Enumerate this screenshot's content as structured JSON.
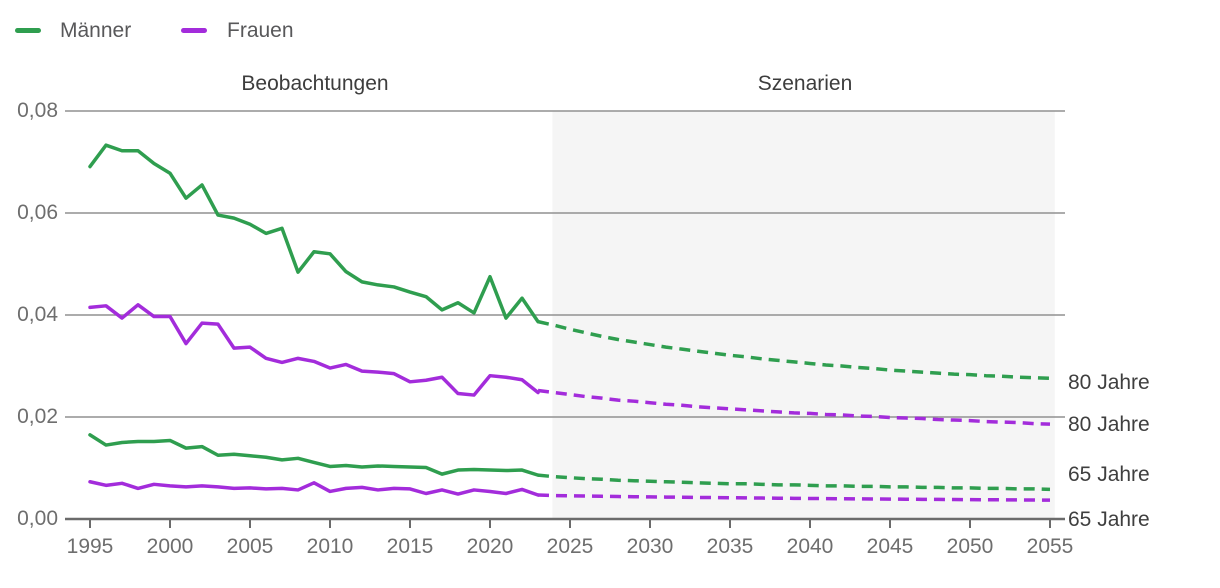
{
  "legend": {
    "items": [
      {
        "label": "Männer",
        "color": "#2f9e4f"
      },
      {
        "label": "Frauen",
        "color": "#a32cdb"
      }
    ]
  },
  "sections": {
    "observations": "Beobachtungen",
    "scenarios": "Szenarien"
  },
  "axes": {
    "y": {
      "tick_labels": [
        "0,08",
        "0,06",
        "0,04",
        "0,02",
        "0,00"
      ]
    },
    "x": {
      "tick_labels": [
        "1995",
        "2000",
        "2005",
        "2010",
        "2015",
        "2020",
        "2025",
        "2030",
        "2035",
        "2040",
        "2045",
        "2050",
        "2055"
      ]
    }
  },
  "line_end_labels": [
    "80 Jahre",
    "80 Jahre",
    "65 Jahre",
    "65 Jahre"
  ],
  "chart_data": {
    "type": "line",
    "title": "",
    "xlabel": "",
    "ylabel": "",
    "xlim": [
      1995,
      2055
    ],
    "ylim": [
      0,
      0.08
    ],
    "y_gridlines": [
      0.08,
      0.06,
      0.04,
      0.02
    ],
    "scenario_region": [
      2023.9,
      2055.3
    ],
    "scenario_bg": "#f5f5f5",
    "gridline_color": "#919191",
    "axis_color": "#6b6b6b",
    "observed_years": [
      1995,
      1996,
      1997,
      1998,
      1999,
      2000,
      2001,
      2002,
      2003,
      2004,
      2005,
      2006,
      2007,
      2008,
      2009,
      2010,
      2011,
      2012,
      2013,
      2014,
      2015,
      2016,
      2017,
      2018,
      2019,
      2020,
      2021,
      2022,
      2023
    ],
    "scenario_years": [
      2023,
      2024,
      2025,
      2026,
      2027,
      2028,
      2029,
      2030,
      2031,
      2032,
      2033,
      2034,
      2035,
      2036,
      2037,
      2038,
      2039,
      2040,
      2041,
      2042,
      2043,
      2044,
      2045,
      2046,
      2047,
      2048,
      2049,
      2050,
      2051,
      2052,
      2053,
      2054,
      2055
    ],
    "series": [
      {
        "name": "Männer 80 Jahre (Beobachtungen)",
        "color": "#2f9e4f",
        "dash": false,
        "period": "observed",
        "values": [
          0.0691,
          0.0733,
          0.0722,
          0.0722,
          0.0697,
          0.0678,
          0.0629,
          0.0655,
          0.0596,
          0.059,
          0.0578,
          0.056,
          0.057,
          0.0484,
          0.0524,
          0.052,
          0.0485,
          0.0465,
          0.0459,
          0.0455,
          0.0445,
          0.0436,
          0.041,
          0.0424,
          0.0404,
          0.0475,
          0.0394,
          0.0433,
          0.0387
        ]
      },
      {
        "name": "Männer 80 Jahre (Szenarien)",
        "color": "#2f9e4f",
        "dash": true,
        "period": "scenario",
        "values": [
          0.0387,
          0.038,
          0.0372,
          0.0365,
          0.0358,
          0.0352,
          0.0347,
          0.0342,
          0.0337,
          0.0333,
          0.0329,
          0.0325,
          0.0321,
          0.0318,
          0.0314,
          0.0311,
          0.0308,
          0.0305,
          0.0302,
          0.03,
          0.0297,
          0.0295,
          0.0292,
          0.029,
          0.0288,
          0.0286,
          0.0284,
          0.0283,
          0.0281,
          0.028,
          0.0278,
          0.0277,
          0.0276
        ]
      },
      {
        "name": "Frauen 80 Jahre (Beobachtungen)",
        "color": "#a32cdb",
        "dash": false,
        "period": "observed",
        "values": [
          0.0415,
          0.0418,
          0.0394,
          0.042,
          0.0397,
          0.0397,
          0.0344,
          0.0384,
          0.0382,
          0.0335,
          0.0337,
          0.0315,
          0.0307,
          0.0315,
          0.0309,
          0.0296,
          0.0303,
          0.029,
          0.0288,
          0.0285,
          0.0269,
          0.0272,
          0.0278,
          0.0246,
          0.0243,
          0.0281,
          0.0278,
          0.0273,
          0.0248
        ]
      },
      {
        "name": "Frauen 80 Jahre (Szenarien)",
        "color": "#a32cdb",
        "dash": true,
        "period": "scenario",
        "values": [
          0.0252,
          0.0248,
          0.0244,
          0.024,
          0.0237,
          0.0233,
          0.0231,
          0.0228,
          0.0225,
          0.0223,
          0.022,
          0.0218,
          0.0216,
          0.0214,
          0.0212,
          0.021,
          0.0208,
          0.0207,
          0.0205,
          0.0204,
          0.0202,
          0.0201,
          0.0199,
          0.0198,
          0.0197,
          0.0195,
          0.0194,
          0.0193,
          0.0191,
          0.019,
          0.0189,
          0.0187,
          0.0186
        ]
      },
      {
        "name": "Männer 65 Jahre (Beobachtungen)",
        "color": "#2f9e4f",
        "dash": false,
        "period": "observed",
        "values": [
          0.0165,
          0.0145,
          0.015,
          0.0152,
          0.0152,
          0.0154,
          0.0139,
          0.0142,
          0.0125,
          0.0127,
          0.0124,
          0.0121,
          0.0116,
          0.0119,
          0.0111,
          0.0103,
          0.0105,
          0.0102,
          0.0104,
          0.0103,
          0.0102,
          0.0101,
          0.0088,
          0.0096,
          0.0097,
          0.0096,
          0.0095,
          0.0096,
          0.0086
        ]
      },
      {
        "name": "Männer 65 Jahre (Szenarien)",
        "color": "#2f9e4f",
        "dash": true,
        "period": "scenario",
        "values": [
          0.0086,
          0.0083,
          0.0081,
          0.0079,
          0.0078,
          0.0076,
          0.0075,
          0.0074,
          0.0073,
          0.0072,
          0.0071,
          0.007,
          0.0069,
          0.0069,
          0.0068,
          0.0067,
          0.0067,
          0.0066,
          0.0065,
          0.0065,
          0.0064,
          0.0064,
          0.0063,
          0.0063,
          0.0062,
          0.0062,
          0.0061,
          0.0061,
          0.006,
          0.006,
          0.0059,
          0.0059,
          0.0058
        ]
      },
      {
        "name": "Frauen 65 Jahre (Beobachtungen)",
        "color": "#a32cdb",
        "dash": false,
        "period": "observed",
        "values": [
          0.0073,
          0.0066,
          0.007,
          0.006,
          0.0068,
          0.0065,
          0.0063,
          0.0065,
          0.0063,
          0.006,
          0.0061,
          0.0059,
          0.006,
          0.0057,
          0.0071,
          0.0054,
          0.006,
          0.0062,
          0.0057,
          0.006,
          0.0059,
          0.005,
          0.0057,
          0.0049,
          0.0057,
          0.0054,
          0.005,
          0.0058,
          0.0047
        ]
      },
      {
        "name": "Frauen 65 Jahre (Szenarien)",
        "color": "#a32cdb",
        "dash": true,
        "period": "scenario",
        "values": [
          0.0047,
          0.0046,
          0.00455,
          0.0045,
          0.00445,
          0.0044,
          0.00437,
          0.00433,
          0.0043,
          0.00427,
          0.00423,
          0.0042,
          0.00417,
          0.00414,
          0.00411,
          0.00408,
          0.00405,
          0.00402,
          0.004,
          0.00397,
          0.00395,
          0.00392,
          0.0039,
          0.00388,
          0.00386,
          0.00384,
          0.00382,
          0.0038,
          0.00378,
          0.00376,
          0.00374,
          0.00372,
          0.0037
        ]
      }
    ]
  }
}
